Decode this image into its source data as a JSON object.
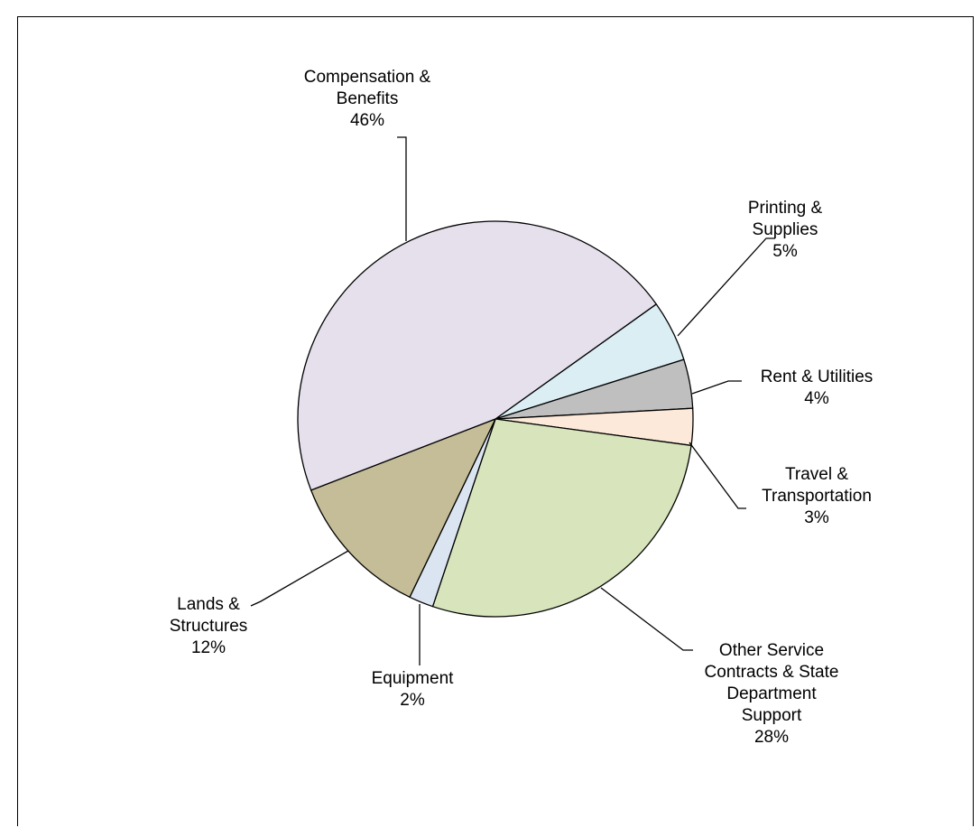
{
  "chart_data": {
    "type": "pie",
    "title": "",
    "slices": [
      {
        "label_lines": [
          "Printing &",
          "Supplies"
        ],
        "pct_text": "5%",
        "value": 5,
        "color": "#dbeef3"
      },
      {
        "label_lines": [
          "Rent & Utilities"
        ],
        "pct_text": "4%",
        "value": 4,
        "color": "#bfbfbf"
      },
      {
        "label_lines": [
          "Travel &",
          "Transportation"
        ],
        "pct_text": "3%",
        "value": 3,
        "color": "#fde9d9"
      },
      {
        "label_lines": [
          "Other Service",
          "Contracts & State",
          "Department",
          "Support"
        ],
        "pct_text": "28%",
        "value": 28,
        "color": "#d7e4bc"
      },
      {
        "label_lines": [
          "Equipment"
        ],
        "pct_text": "2%",
        "value": 2,
        "color": "#dbe5f1"
      },
      {
        "label_lines": [
          "Lands &",
          "Structures"
        ],
        "pct_text": "12%",
        "value": 12,
        "color": "#c4bd97"
      },
      {
        "label_lines": [
          "Compensation &",
          "Benefits"
        ],
        "pct_text": "46%",
        "value": 46,
        "color": "#e5e0ec"
      }
    ]
  }
}
